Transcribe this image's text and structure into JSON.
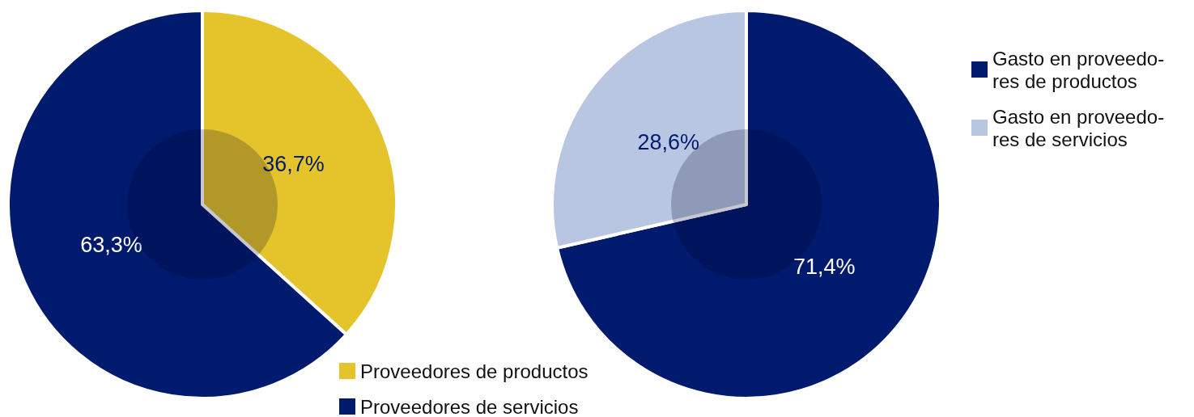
{
  "chart_data": [
    {
      "type": "donut",
      "categories": [
        "Proveedores de productos",
        "Proveedores de servicios"
      ],
      "values": [
        36.7,
        63.3
      ],
      "colors": [
        "#e5c32a",
        "#001a6e"
      ],
      "data_labels": true,
      "value_labels": [
        "36,7%",
        "63,3%"
      ],
      "legend": "bottom right"
    },
    {
      "type": "donut",
      "categories": [
        "Gasto en proveedo- res de productos",
        "Gasto en proveedo- res de servicios"
      ],
      "values": [
        71.4,
        28.6
      ],
      "colors": [
        "#001a6e",
        "#b8c6e2"
      ],
      "data_labels": true,
      "value_labels": [
        "71,4%",
        "28,6%"
      ],
      "legend": "top right"
    }
  ]
}
